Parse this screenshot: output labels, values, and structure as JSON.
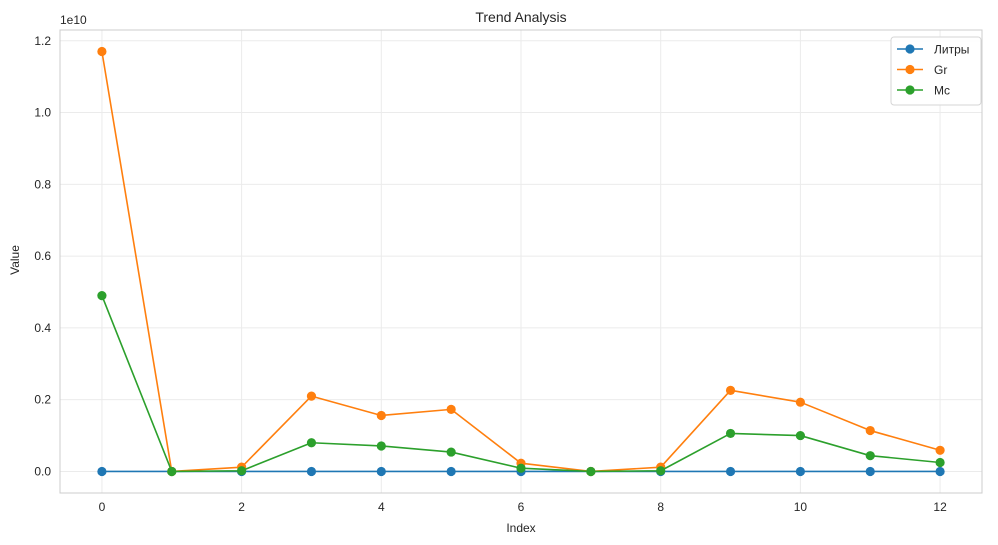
{
  "chart_data": {
    "type": "line",
    "title": "Trend Analysis",
    "xlabel": "Index",
    "ylabel": "Value",
    "y_offset_label": "1e10",
    "y_scale": 10000000000,
    "xlim": [
      -0.6,
      12.6
    ],
    "ylim": [
      -0.06,
      1.23
    ],
    "xticks": [
      0,
      2,
      4,
      6,
      8,
      10,
      12
    ],
    "xtick_labels": [
      "0",
      "2",
      "4",
      "6",
      "8",
      "10",
      "12"
    ],
    "yticks": [
      0.0,
      0.2,
      0.4,
      0.6,
      0.8,
      1.0,
      1.2
    ],
    "ytick_labels": [
      "0.0",
      "0.2",
      "0.4",
      "0.6",
      "0.8",
      "1.0",
      "1.2"
    ],
    "grid": true,
    "legend_position": "top-right",
    "x": [
      0,
      1,
      2,
      3,
      4,
      5,
      6,
      7,
      8,
      9,
      10,
      11,
      12
    ],
    "series": [
      {
        "name": "Литры",
        "color": "#1f77b4",
        "values": [
          0.0,
          0.0,
          0.0,
          0.0,
          0.0,
          0.0,
          0.0,
          0.0,
          0.0,
          0.0,
          0.0,
          0.0,
          0.0
        ]
      },
      {
        "name": "Gr",
        "color": "#ff7f0e",
        "values": [
          1.17,
          0.0,
          0.012,
          0.21,
          0.156,
          0.173,
          0.023,
          0.0,
          0.012,
          0.226,
          0.193,
          0.114,
          0.059
        ]
      },
      {
        "name": "Mc",
        "color": "#2ca02c",
        "values": [
          0.49,
          0.0,
          0.002,
          0.08,
          0.071,
          0.054,
          0.009,
          0.0,
          0.002,
          0.106,
          0.1,
          0.044,
          0.025
        ]
      }
    ]
  }
}
